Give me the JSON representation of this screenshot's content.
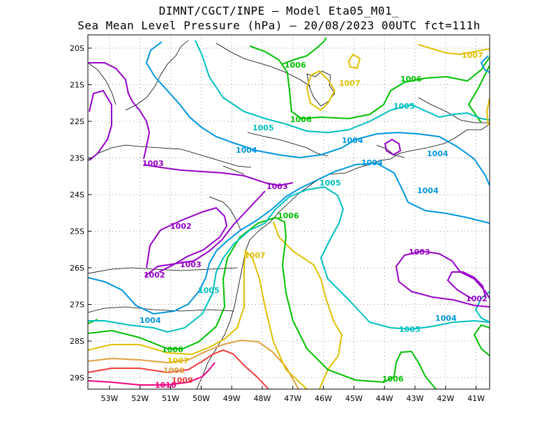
{
  "title": {
    "line1": "DIMNT/CGCT/INPE –  Model Eta05_M01_",
    "line2": "Sea Mean Level Pressure (hPa) – 20/08/2023 00UTC fct=111h"
  },
  "axes": {
    "x_ticks": [
      "53W",
      "52W",
      "51W",
      "50W",
      "49W",
      "48W",
      "47W",
      "46W",
      "45W",
      "44W",
      "43W",
      "42W",
      "41W"
    ],
    "y_ticks": [
      "20S",
      "21S",
      "22S",
      "23S",
      "24S",
      "25S",
      "26S",
      "27S",
      "28S",
      "29S"
    ]
  },
  "contour_labels": [
    {
      "text": "1007",
      "color": "#e0c000"
    },
    {
      "text": "1006",
      "color": "#00c000"
    },
    {
      "text": "1007",
      "color": "#e0c000"
    },
    {
      "text": "1006",
      "color": "#00c000"
    },
    {
      "text": "1005",
      "color": "#00c0c0"
    },
    {
      "text": "1006",
      "color": "#00c000"
    },
    {
      "text": "1005",
      "color": "#00c0c0"
    },
    {
      "text": "1004",
      "color": "#0096e0"
    },
    {
      "text": "1004",
      "color": "#0096e0"
    },
    {
      "text": "1004",
      "color": "#0096e0"
    },
    {
      "text": "1004",
      "color": "#0096e0"
    },
    {
      "text": "1003",
      "color": "#9600c8"
    },
    {
      "text": "1003",
      "color": "#9600c8"
    },
    {
      "text": "1005",
      "color": "#00c0c0"
    },
    {
      "text": "1006",
      "color": "#00c000"
    },
    {
      "text": "1004",
      "color": "#0096e0"
    },
    {
      "text": "1002",
      "color": "#9600c8"
    },
    {
      "text": "1007",
      "color": "#e0c000"
    },
    {
      "text": "1003",
      "color": "#9600c8"
    },
    {
      "text": "1003",
      "color": "#9600c8"
    },
    {
      "text": "1002",
      "color": "#9600c8"
    },
    {
      "text": "1005",
      "color": "#00c0c0"
    },
    {
      "text": "1002",
      "color": "#9600c8"
    },
    {
      "text": "1004",
      "color": "#0096e0"
    },
    {
      "text": "1004",
      "color": "#0096e0"
    },
    {
      "text": "1005",
      "color": "#00c0c0"
    },
    {
      "text": "1006",
      "color": "#00c000"
    },
    {
      "text": "1007",
      "color": "#e0c000"
    },
    {
      "text": "1008",
      "color": "#e0a040"
    },
    {
      "text": "1009",
      "color": "#f03c3c"
    },
    {
      "text": "1010",
      "color": "#f00082"
    },
    {
      "text": "1006",
      "color": "#00c000"
    }
  ],
  "colors": {
    "1002": "#9600c8",
    "1003": "#9600c8",
    "1004": "#0096e0",
    "1005": "#00c0c0",
    "1006": "#00c000",
    "1007": "#e0c000",
    "1008": "#e0a040",
    "1009": "#f03c3c",
    "1010": "#f00082",
    "coast": "#000000",
    "grid": "#999999"
  }
}
